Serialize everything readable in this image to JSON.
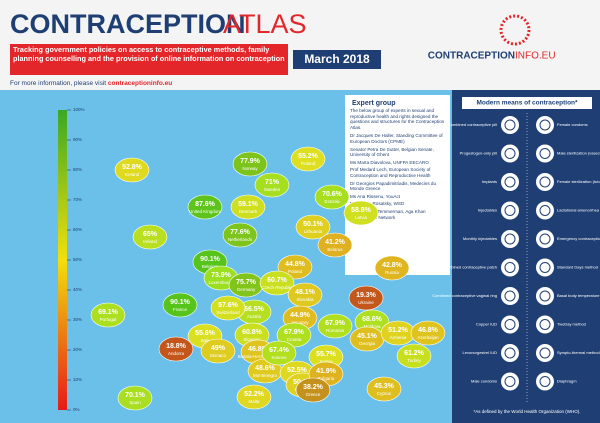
{
  "header": {
    "title_a": "CONTRACEPTION",
    "title_b": "ATLAS",
    "subtitle": "Tracking government policies on access to contraceptive methods, family planning counselling and the provision of online information on contraception",
    "date": "March 2018",
    "more_info": "For more information, please visit",
    "more_info_link": "contraceptioninfo.eu",
    "logo_a": "CONTRACEPTION",
    "logo_b": "INFO.EU"
  },
  "legend": {
    "range": [
      0,
      100
    ],
    "ticks": [
      {
        "value": 100,
        "label": "100%"
      },
      {
        "value": 90,
        "label": "90%"
      },
      {
        "value": 80,
        "label": "80%"
      },
      {
        "value": 70,
        "label": "70%"
      },
      {
        "value": 60,
        "label": "60%"
      },
      {
        "value": 50,
        "label": "50%"
      },
      {
        "value": 40,
        "label": "40%"
      },
      {
        "value": 30,
        "label": "30%"
      },
      {
        "value": 20,
        "label": "20%"
      },
      {
        "value": 10,
        "label": "10%"
      },
      {
        "value": 0,
        "label": "0%"
      }
    ]
  },
  "map": {
    "countries": [
      {
        "name": "Iceland",
        "value": 52.8,
        "value_label": "52.8%"
      },
      {
        "name": "Norway",
        "value": 77.9,
        "value_label": "77.9%"
      },
      {
        "name": "Finland",
        "value": 55.2,
        "value_label": "55.2%"
      },
      {
        "name": "Sweden",
        "value": 71,
        "value_label": "71%"
      },
      {
        "name": "Estonia",
        "value": 70.6,
        "value_label": "70.6%"
      },
      {
        "name": "Latvia",
        "value": 58.8,
        "value_label": "58.8%"
      },
      {
        "name": "Lithuania",
        "value": 50.1,
        "value_label": "50.1%"
      },
      {
        "name": "Denmark",
        "value": 59.1,
        "value_label": "59.1%"
      },
      {
        "name": "United Kingdom",
        "value": 87.6,
        "value_label": "87.6%"
      },
      {
        "name": "Ireland",
        "value": 65,
        "value_label": "65%"
      },
      {
        "name": "Netherlands",
        "value": 77.6,
        "value_label": "77.6%"
      },
      {
        "name": "Belgium",
        "value": 90.1,
        "value_label": "90.1%"
      },
      {
        "name": "Luxembourg",
        "value": 73.9,
        "value_label": "73.9%"
      },
      {
        "name": "France",
        "value": 90.1,
        "value_label": "90.1%"
      },
      {
        "name": "Germany",
        "value": 75.7,
        "value_label": "75.7%"
      },
      {
        "name": "Poland",
        "value": 44.8,
        "value_label": "44.8%"
      },
      {
        "name": "Belarus",
        "value": 41.2,
        "value_label": "41.2%"
      },
      {
        "name": "Russia",
        "value": 42.8,
        "value_label": "42.8%"
      },
      {
        "name": "Czech Republic",
        "value": 60.7,
        "value_label": "60.7%"
      },
      {
        "name": "Slovakia",
        "value": 48.1,
        "value_label": "48.1%"
      },
      {
        "name": "Ukraine",
        "value": 19.3,
        "value_label": "19.3%"
      },
      {
        "name": "Austria",
        "value": 66.5,
        "value_label": "66.5%"
      },
      {
        "name": "Hungary",
        "value": 44.9,
        "value_label": "44.9%"
      },
      {
        "name": "Switzerland",
        "value": 57.6,
        "value_label": "57.6%"
      },
      {
        "name": "Slovenia",
        "value": 60.8,
        "value_label": "60.8%"
      },
      {
        "name": "Croatia",
        "value": 67.9,
        "value_label": "67.9%"
      },
      {
        "name": "Romania",
        "value": 67.9,
        "value_label": "67.9%"
      },
      {
        "name": "Moldova",
        "value": 68.6,
        "value_label": "68.6%"
      },
      {
        "name": "Italy",
        "value": 55.6,
        "value_label": "55.6%"
      },
      {
        "name": "Portugal",
        "value": 69.1,
        "value_label": "69.1%"
      },
      {
        "name": "Spain",
        "value": 70.1,
        "value_label": "70.1%"
      },
      {
        "name": "Andorra",
        "value": 18.8,
        "value_label": "18.8%"
      },
      {
        "name": "Monaco",
        "value": 49,
        "value_label": "49%"
      },
      {
        "name": "Bosnia-Herzegovina",
        "value": 46.8,
        "value_label": "46.8%"
      },
      {
        "name": "Montenegro",
        "value": 48.6,
        "value_label": "48.6%"
      },
      {
        "name": "Kosovo",
        "value": 67.4,
        "value_label": "67.4%"
      },
      {
        "name": "Albania",
        "value": 52.5,
        "value_label": "52.5%"
      },
      {
        "name": "Serbia",
        "value": 55.7,
        "value_label": "55.7%"
      },
      {
        "name": "FYROM",
        "value": 50.6,
        "value_label": "50.6%"
      },
      {
        "name": "Bulgaria",
        "value": 41.9,
        "value_label": "41.9%"
      },
      {
        "name": "Greece",
        "value": 38.2,
        "value_label": "38.2%"
      },
      {
        "name": "Malta",
        "value": 52.2,
        "value_label": "52.2%"
      },
      {
        "name": "Cyprus",
        "value": 45.3,
        "value_label": "45.3%"
      },
      {
        "name": "Turkey",
        "value": 61.2,
        "value_label": "61.2%"
      },
      {
        "name": "Georgia",
        "value": 45.1,
        "value_label": "45.1%"
      },
      {
        "name": "Armenia",
        "value": 51.2,
        "value_label": "51.2%"
      },
      {
        "name": "Azerbaijan",
        "value": 46.8,
        "value_label": "46.8%"
      }
    ]
  },
  "expert_group": {
    "title": "Expert group",
    "intro": "The below group of experts in sexual and reproductive health and rights designed the questions and structures for the Contraception Atlas.",
    "members": [
      "Dr Jacques De Haller, Standing Committee of European Doctors (CPME)",
      "Senator Petra De Sutter, Belgian Senate, University of Ghent",
      "Ms Marta Diavolova, UNFPA EECARO",
      "Prof Medard Lech, European Society of Contraception and Reproductive Health",
      "Dr Georgios Papadimitriadis, Medecins du Monde Greece",
      "Ms Ana Rissenu, YouAct",
      "Ms Amelia Rosatsky, WSD",
      "Prof Marleen Temmerman, Aga Khan Development Network"
    ]
  },
  "methods": {
    "title": "Modern means of contraception*",
    "items": [
      "Combined contraceptive pill",
      "Progestogen-only pill",
      "Implants",
      "Injectables",
      "Monthly injectables",
      "Combined contraceptive patch",
      "Combined contraceptive vaginal ring",
      "Copper IUD",
      "Levonorgestrel IUD",
      "Male condoms",
      "Female condoms",
      "Male sterilization (vasectomy)",
      "Female sterilization (tubal ligation)",
      "Lactational amenorrhea method",
      "Emergency contraception pills",
      "Standard Days method",
      "Basal body temperature method",
      "TwoDay method",
      "Sympto-thermal method",
      "Diaphragm"
    ],
    "footnote": "*As defined by the World Health Organization (WHO)."
  }
}
